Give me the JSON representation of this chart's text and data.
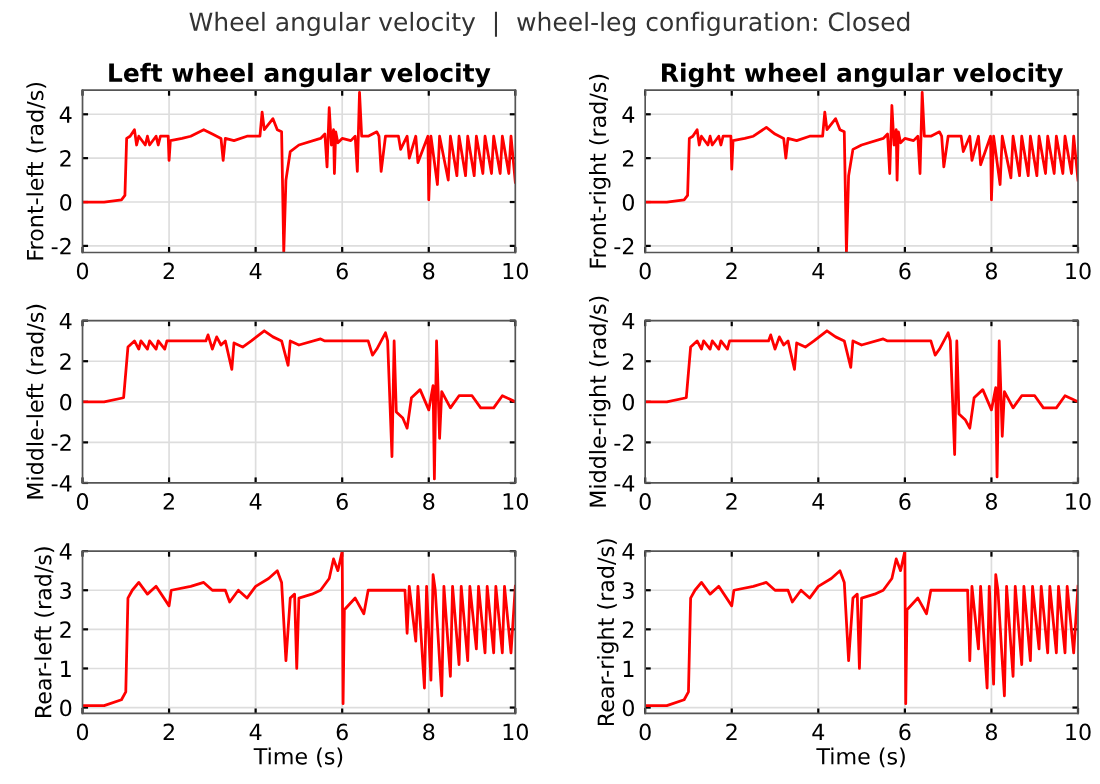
{
  "chart_data": [
    {
      "type": "line",
      "title": "Left wheel angular velocity",
      "ylabel": "Front-left (rad/s)",
      "annotations": [
        "Wheel angular velocity  |  wheel-leg configuration: Closed"
      ],
      "xlim": [
        0,
        10
      ],
      "xticks": [
        0,
        2,
        4,
        6,
        8,
        10
      ],
      "ylim": [
        -2.3,
        5.1
      ],
      "yticks": [
        -2,
        0,
        2,
        4
      ],
      "grid": true,
      "marker": "none",
      "line_style": "solid",
      "series": [
        {
          "color": "#ff0000",
          "x": [
            0,
            0.5,
            0.9,
            0.98,
            1.02,
            1.1,
            1.2,
            1.25,
            1.3,
            1.45,
            1.5,
            1.55,
            1.7,
            1.75,
            1.8,
            1.98,
            2.0,
            2.03,
            2.3,
            2.5,
            2.8,
            3.0,
            3.2,
            3.25,
            3.3,
            3.5,
            3.8,
            4.1,
            4.15,
            4.2,
            4.4,
            4.5,
            4.6,
            4.65,
            4.7,
            4.8,
            5.0,
            5.5,
            5.6,
            5.65,
            5.7,
            5.75,
            5.8,
            5.82,
            5.85,
            5.9,
            6.0,
            6.2,
            6.3,
            6.35,
            6.4,
            6.45,
            6.6,
            6.8,
            6.85,
            6.9,
            7.0,
            7.3,
            7.35,
            7.5,
            7.55,
            7.7,
            7.75,
            7.98,
            8.0,
            8.05,
            8.2,
            8.25,
            8.45,
            8.5,
            8.65,
            8.7,
            8.85,
            8.9,
            9.05,
            9.1,
            9.25,
            9.3,
            9.45,
            9.5,
            9.65,
            9.7,
            9.85,
            9.9,
            10
          ],
          "values": [
            0,
            0,
            0.1,
            0.3,
            2.9,
            3.0,
            3.3,
            2.6,
            3.0,
            2.6,
            3.0,
            2.6,
            3.0,
            2.6,
            3.0,
            3.0,
            1.9,
            2.8,
            2.9,
            3.0,
            3.3,
            3.1,
            2.9,
            1.9,
            2.9,
            2.8,
            3.0,
            3.0,
            4.1,
            3.3,
            3.8,
            3.3,
            3.2,
            -2.3,
            1.0,
            2.3,
            2.6,
            2.9,
            3.1,
            1.6,
            4.3,
            2.6,
            3.3,
            1.3,
            3.2,
            2.7,
            2.9,
            2.8,
            3.0,
            1.4,
            5.0,
            3.0,
            3.0,
            3.2,
            3.0,
            1.4,
            3.0,
            3.0,
            2.4,
            3.0,
            2.0,
            3.0,
            1.8,
            3.0,
            0.1,
            3.0,
            0.8,
            3.0,
            1.0,
            3.0,
            1.2,
            3.0,
            1.2,
            3.0,
            1.2,
            3.0,
            1.3,
            3.0,
            1.3,
            3.0,
            1.3,
            3.0,
            1.3,
            3.0,
            0.9
          ]
        }
      ]
    },
    {
      "type": "line",
      "title": "Right wheel angular velocity",
      "ylabel": "Front-right (rad/s)",
      "xlim": [
        0,
        10
      ],
      "xticks": [
        0,
        2,
        4,
        6,
        8,
        10
      ],
      "ylim": [
        -2.3,
        5.1
      ],
      "yticks": [
        -2,
        0,
        2,
        4
      ],
      "grid": true,
      "marker": "none",
      "line_style": "solid",
      "series": [
        {
          "color": "#ff0000",
          "x": [
            0,
            0.5,
            0.9,
            0.98,
            1.02,
            1.1,
            1.2,
            1.25,
            1.3,
            1.45,
            1.5,
            1.55,
            1.7,
            1.75,
            1.8,
            1.98,
            2.0,
            2.03,
            2.3,
            2.5,
            2.8,
            3.0,
            3.2,
            3.25,
            3.3,
            3.5,
            3.8,
            4.1,
            4.15,
            4.2,
            4.4,
            4.5,
            4.6,
            4.65,
            4.7,
            4.8,
            5.0,
            5.5,
            5.6,
            5.65,
            5.7,
            5.75,
            5.8,
            5.82,
            5.85,
            5.9,
            6.0,
            6.2,
            6.3,
            6.35,
            6.4,
            6.45,
            6.6,
            6.8,
            6.85,
            6.9,
            7.0,
            7.3,
            7.35,
            7.5,
            7.55,
            7.7,
            7.75,
            7.98,
            8.0,
            8.05,
            8.2,
            8.25,
            8.45,
            8.5,
            8.65,
            8.7,
            8.85,
            8.9,
            9.05,
            9.1,
            9.25,
            9.3,
            9.45,
            9.5,
            9.65,
            9.7,
            9.85,
            9.9,
            10
          ],
          "values": [
            0,
            0,
            0.1,
            0.3,
            2.9,
            3.0,
            3.3,
            2.6,
            3.0,
            2.6,
            3.0,
            2.6,
            3.0,
            2.6,
            3.0,
            3.0,
            1.5,
            2.8,
            2.9,
            3.0,
            3.4,
            3.1,
            2.9,
            2.0,
            2.9,
            2.8,
            3.0,
            3.0,
            4.1,
            3.3,
            3.8,
            3.3,
            3.2,
            -2.3,
            1.2,
            2.4,
            2.6,
            2.9,
            3.1,
            1.3,
            4.4,
            2.6,
            3.3,
            1.0,
            3.2,
            2.7,
            2.9,
            2.8,
            3.0,
            1.3,
            5.0,
            3.0,
            3.0,
            3.2,
            3.0,
            1.6,
            3.0,
            3.0,
            2.3,
            3.0,
            1.9,
            3.0,
            1.7,
            3.0,
            0.1,
            3.0,
            0.8,
            3.0,
            1.1,
            3.0,
            1.2,
            3.0,
            1.2,
            3.0,
            1.2,
            3.0,
            1.3,
            3.0,
            1.3,
            3.0,
            1.3,
            3.0,
            1.3,
            3.0,
            1.0
          ]
        }
      ]
    },
    {
      "type": "line",
      "ylabel": "Middle-left (rad/s)",
      "xlim": [
        0,
        10
      ],
      "xticks": [
        0,
        2,
        4,
        6,
        8,
        10
      ],
      "ylim": [
        -4,
        4
      ],
      "yticks": [
        -4,
        -2,
        0,
        2,
        4
      ],
      "grid": true,
      "marker": "none",
      "line_style": "solid",
      "series": [
        {
          "color": "#ff0000",
          "x": [
            0,
            0.5,
            0.95,
            1.05,
            1.2,
            1.3,
            1.35,
            1.5,
            1.55,
            1.7,
            1.75,
            1.9,
            1.95,
            2.1,
            2.85,
            2.9,
            3.0,
            3.1,
            3.2,
            3.3,
            3.45,
            3.5,
            3.7,
            3.9,
            4.2,
            4.4,
            4.6,
            4.75,
            4.8,
            5.0,
            5.5,
            5.6,
            6.6,
            6.7,
            6.8,
            7.0,
            7.05,
            7.15,
            7.2,
            7.25,
            7.4,
            7.5,
            7.6,
            7.8,
            8.0,
            8.1,
            8.13,
            8.18,
            8.25,
            8.3,
            8.5,
            8.7,
            9.0,
            9.2,
            9.5,
            9.7,
            10
          ],
          "values": [
            0,
            0,
            0.2,
            2.7,
            3.0,
            2.6,
            3.0,
            2.6,
            3.0,
            2.6,
            3.0,
            2.6,
            3.0,
            3.0,
            3.0,
            3.3,
            2.6,
            3.2,
            2.8,
            3.0,
            1.6,
            2.9,
            2.7,
            3.0,
            3.5,
            3.2,
            3.0,
            1.8,
            3.0,
            2.8,
            3.1,
            3.0,
            3.0,
            2.3,
            2.6,
            3.4,
            3.0,
            -2.7,
            3.0,
            -0.5,
            -0.8,
            -1.3,
            0.2,
            0.6,
            -0.4,
            0.8,
            -3.8,
            3.0,
            -1.8,
            0.5,
            -0.3,
            0.3,
            0.3,
            -0.3,
            -0.3,
            0.3,
            0
          ]
        }
      ]
    },
    {
      "type": "line",
      "ylabel": "Middle-right (rad/s)",
      "xlim": [
        0,
        10
      ],
      "xticks": [
        0,
        2,
        4,
        6,
        8,
        10
      ],
      "ylim": [
        -4,
        4
      ],
      "yticks": [
        -4,
        -2,
        0,
        2,
        4
      ],
      "grid": true,
      "marker": "none",
      "line_style": "solid",
      "series": [
        {
          "color": "#ff0000",
          "x": [
            0,
            0.5,
            0.95,
            1.05,
            1.2,
            1.3,
            1.35,
            1.5,
            1.55,
            1.7,
            1.75,
            1.9,
            1.95,
            2.1,
            2.85,
            2.9,
            3.0,
            3.1,
            3.2,
            3.3,
            3.45,
            3.5,
            3.7,
            3.9,
            4.2,
            4.4,
            4.6,
            4.75,
            4.8,
            5.0,
            5.5,
            5.6,
            6.6,
            6.7,
            6.8,
            7.0,
            7.05,
            7.15,
            7.2,
            7.25,
            7.4,
            7.5,
            7.6,
            7.8,
            8.0,
            8.1,
            8.13,
            8.18,
            8.25,
            8.3,
            8.5,
            8.7,
            9.0,
            9.2,
            9.5,
            9.7,
            10
          ],
          "values": [
            0,
            0,
            0.2,
            2.7,
            3.0,
            2.6,
            3.0,
            2.6,
            3.0,
            2.6,
            3.0,
            2.6,
            3.0,
            3.0,
            3.0,
            3.3,
            2.6,
            3.2,
            2.8,
            3.0,
            1.6,
            2.9,
            2.7,
            3.0,
            3.5,
            3.2,
            3.0,
            1.7,
            3.0,
            2.8,
            3.1,
            3.0,
            3.0,
            2.3,
            2.6,
            3.4,
            3.0,
            -2.6,
            3.0,
            -0.6,
            -0.9,
            -1.3,
            0.2,
            0.6,
            -0.4,
            0.7,
            -3.7,
            3.0,
            -1.7,
            0.5,
            -0.3,
            0.3,
            0.3,
            -0.3,
            -0.3,
            0.3,
            0
          ]
        }
      ]
    },
    {
      "type": "line",
      "xlabel": "Time (s)",
      "ylabel": "Rear-left (rad/s)",
      "xlim": [
        0,
        10
      ],
      "xticks": [
        0,
        2,
        4,
        6,
        8,
        10
      ],
      "ylim": [
        -0.15,
        4
      ],
      "yticks": [
        0,
        1,
        2,
        3,
        4
      ],
      "grid": true,
      "marker": "none",
      "line_style": "solid",
      "series": [
        {
          "color": "#ff0000",
          "x": [
            0,
            0.5,
            0.9,
            1.0,
            1.05,
            1.15,
            1.3,
            1.5,
            1.7,
            2.0,
            2.05,
            2.5,
            2.8,
            3.0,
            3.3,
            3.4,
            3.6,
            3.8,
            4.0,
            4.3,
            4.5,
            4.6,
            4.7,
            4.8,
            4.9,
            4.95,
            5.0,
            5.3,
            5.5,
            5.7,
            5.8,
            5.9,
            6.0,
            6.02,
            6.05,
            6.3,
            6.5,
            6.6,
            7.0,
            7.45,
            7.5,
            7.55,
            7.7,
            7.75,
            7.9,
            7.95,
            8.05,
            8.1,
            8.15,
            8.3,
            8.35,
            8.5,
            8.55,
            8.7,
            8.75,
            8.9,
            8.95,
            9.1,
            9.15,
            9.3,
            9.35,
            9.5,
            9.55,
            9.7,
            9.75,
            9.9,
            10
          ],
          "values": [
            0.05,
            0.05,
            0.2,
            0.4,
            2.8,
            3.0,
            3.2,
            2.9,
            3.1,
            2.6,
            3.0,
            3.1,
            3.2,
            3.0,
            3.0,
            2.7,
            3.0,
            2.8,
            3.1,
            3.3,
            3.5,
            3.2,
            1.2,
            2.8,
            2.9,
            1.0,
            2.8,
            2.9,
            3.0,
            3.3,
            3.8,
            3.5,
            4.0,
            0.1,
            2.5,
            2.8,
            2.4,
            3.0,
            3.0,
            3.0,
            1.9,
            3.1,
            1.7,
            3.1,
            0.5,
            3.1,
            0.7,
            3.4,
            3.0,
            0.3,
            3.1,
            0.8,
            3.1,
            1.1,
            3.1,
            1.2,
            3.1,
            1.5,
            3.1,
            1.4,
            3.1,
            1.4,
            3.1,
            1.4,
            3.1,
            1.4,
            3.1
          ]
        }
      ]
    },
    {
      "type": "line",
      "xlabel": "Time (s)",
      "ylabel": "Rear-right (rad/s)",
      "xlim": [
        0,
        10
      ],
      "xticks": [
        0,
        2,
        4,
        6,
        8,
        10
      ],
      "ylim": [
        -0.15,
        4
      ],
      "yticks": [
        0,
        1,
        2,
        3,
        4
      ],
      "grid": true,
      "marker": "none",
      "line_style": "solid",
      "series": [
        {
          "color": "#ff0000",
          "x": [
            0,
            0.5,
            0.9,
            1.0,
            1.05,
            1.15,
            1.3,
            1.5,
            1.7,
            2.0,
            2.05,
            2.5,
            2.8,
            3.0,
            3.3,
            3.4,
            3.6,
            3.8,
            4.0,
            4.3,
            4.5,
            4.6,
            4.7,
            4.8,
            4.9,
            4.95,
            5.0,
            5.3,
            5.5,
            5.7,
            5.8,
            5.9,
            6.0,
            6.02,
            6.05,
            6.3,
            6.5,
            6.6,
            7.0,
            7.45,
            7.5,
            7.55,
            7.7,
            7.75,
            7.9,
            7.95,
            8.05,
            8.1,
            8.15,
            8.3,
            8.35,
            8.5,
            8.55,
            8.7,
            8.75,
            8.9,
            8.95,
            9.1,
            9.15,
            9.3,
            9.35,
            9.5,
            9.55,
            9.7,
            9.75,
            9.9,
            10
          ],
          "values": [
            0.05,
            0.05,
            0.2,
            0.4,
            2.8,
            3.0,
            3.2,
            2.9,
            3.1,
            2.6,
            3.0,
            3.1,
            3.2,
            3.0,
            3.0,
            2.7,
            3.0,
            2.8,
            3.1,
            3.3,
            3.5,
            3.2,
            1.2,
            2.8,
            2.9,
            1.0,
            2.8,
            2.9,
            3.0,
            3.3,
            3.8,
            3.5,
            4.0,
            0.1,
            2.5,
            2.8,
            2.4,
            3.0,
            3.0,
            3.0,
            1.2,
            3.1,
            1.5,
            3.1,
            0.5,
            3.1,
            0.6,
            3.4,
            3.0,
            0.3,
            3.1,
            0.8,
            3.1,
            1.1,
            3.1,
            1.2,
            3.1,
            1.5,
            3.1,
            1.4,
            3.1,
            1.4,
            3.1,
            1.4,
            3.1,
            1.4,
            3.1
          ]
        }
      ]
    }
  ]
}
